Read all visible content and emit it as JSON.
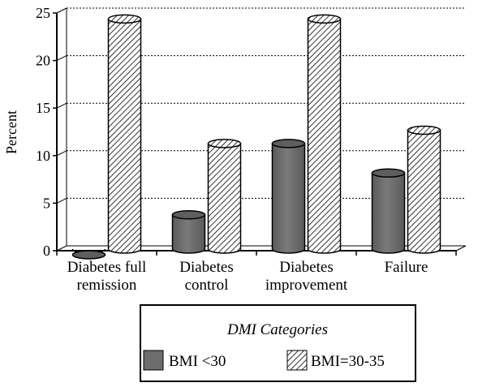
{
  "chart_data": {
    "type": "bar",
    "title": "",
    "xlabel": "",
    "ylabel": "Percent",
    "ylim": [
      0,
      25
    ],
    "yticks": [
      0,
      5,
      10,
      15,
      20,
      25
    ],
    "grid": true,
    "categories": [
      [
        "Diabetes full",
        "remission"
      ],
      [
        "Diabetes",
        "control"
      ],
      [
        "Diabetes",
        "improvement"
      ],
      [
        "Failure"
      ]
    ],
    "series": [
      {
        "name": "BMI <30",
        "values": [
          0,
          4.2,
          11.7,
          8.6
        ],
        "fill": "#6d6d6d",
        "pattern": "solid"
      },
      {
        "name": "BMI=30-35",
        "values": [
          24.8,
          11.7,
          24.8,
          13.1
        ],
        "fill": "#ffffff",
        "pattern": "hatched"
      }
    ],
    "legend": {
      "title": "DMI Categories",
      "position": "bottom"
    }
  }
}
